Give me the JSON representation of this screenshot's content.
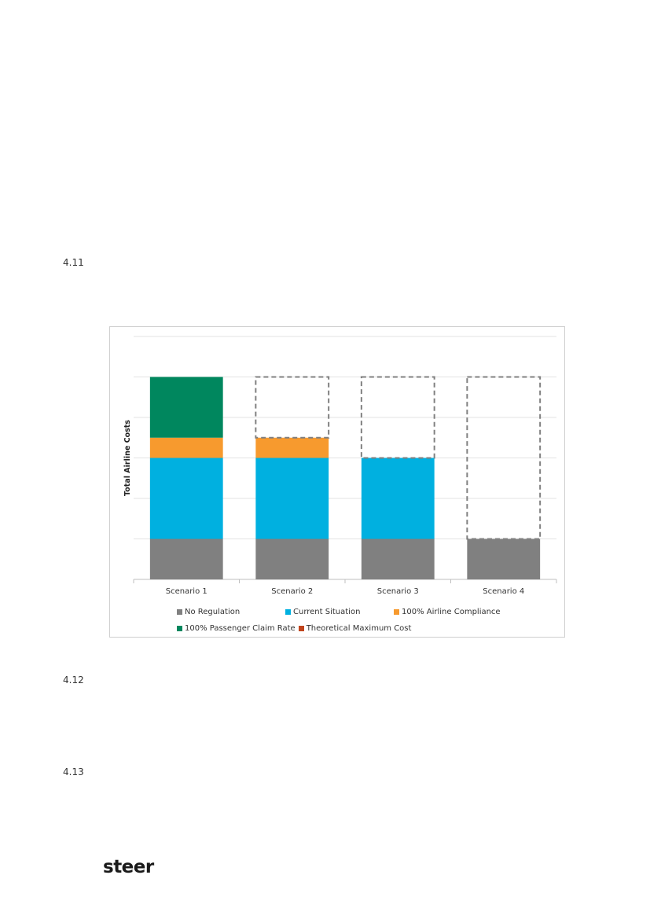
{
  "paragraph_numbers": [
    "4.11",
    "4.12",
    "4.13"
  ],
  "logo_text": "steer",
  "chart_data": {
    "type": "bar",
    "stacked": true,
    "title": "",
    "xlabel": "",
    "ylabel": "Total Airline Costs",
    "categories": [
      "Scenario 1",
      "Scenario 2",
      "Scenario 3",
      "Scenario 4"
    ],
    "ylim": [
      0,
      6
    ],
    "grid": true,
    "y_tick_labels_shown": false,
    "series": [
      {
        "name": "No Regulation",
        "color": "#808080",
        "values": [
          1,
          1,
          1,
          1
        ]
      },
      {
        "name": "Current Situation",
        "color": "#00B0E0",
        "values": [
          2,
          2,
          2,
          0
        ]
      },
      {
        "name": "100% Airline Compliance",
        "color": "#F79A2E",
        "values": [
          0.5,
          0.5,
          0,
          0
        ]
      },
      {
        "name": "100% Passenger Claim Rate",
        "color": "#00875E",
        "values": [
          1.5,
          0,
          0,
          0
        ]
      },
      {
        "name": "Theoretical Maximum Cost",
        "color": "#C0441C",
        "values": [
          0,
          0,
          0,
          0
        ]
      }
    ],
    "maximum_outline": {
      "style": "dashed",
      "color": "#808080",
      "values": [
        5,
        5,
        5,
        5
      ]
    },
    "legend_position": "bottom"
  }
}
